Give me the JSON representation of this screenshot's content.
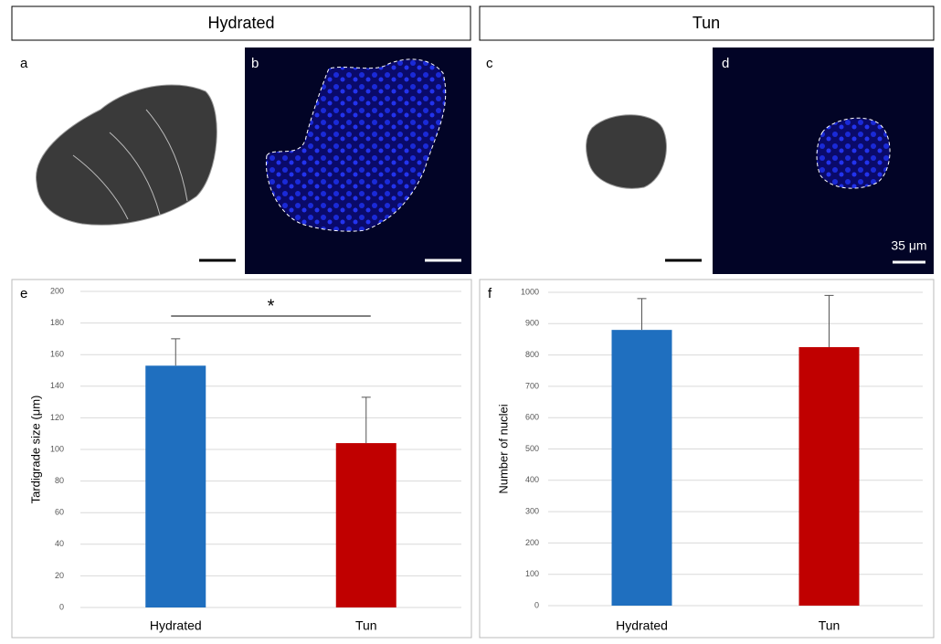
{
  "headers": [
    "Hydrated",
    "Tun"
  ],
  "panel_labels": [
    "a",
    "b",
    "c",
    "d",
    "e",
    "f"
  ],
  "scale_label": "35 μm",
  "chart_data": [
    {
      "type": "bar",
      "y_label": "Tardigrade size (μm)",
      "categories": [
        "Hydrated",
        "Tun"
      ],
      "values": [
        153,
        104
      ],
      "errors": [
        17,
        29
      ],
      "colors": [
        "#1f6fbf",
        "#c00000"
      ],
      "ylim": [
        0,
        200
      ],
      "yticks": [
        0,
        20,
        40,
        60,
        80,
        100,
        120,
        140,
        160,
        180,
        200
      ],
      "grid": true,
      "annotation": "*"
    },
    {
      "type": "bar",
      "y_label": "Number of nuclei",
      "categories": [
        "Hydrated",
        "Tun"
      ],
      "values": [
        880,
        825
      ],
      "errors": [
        100,
        165
      ],
      "colors": [
        "#1f6fbf",
        "#c00000"
      ],
      "ylim": [
        0,
        1000
      ],
      "yticks": [
        0,
        100,
        200,
        300,
        400,
        500,
        600,
        700,
        800,
        900,
        1000
      ],
      "grid": true
    }
  ]
}
